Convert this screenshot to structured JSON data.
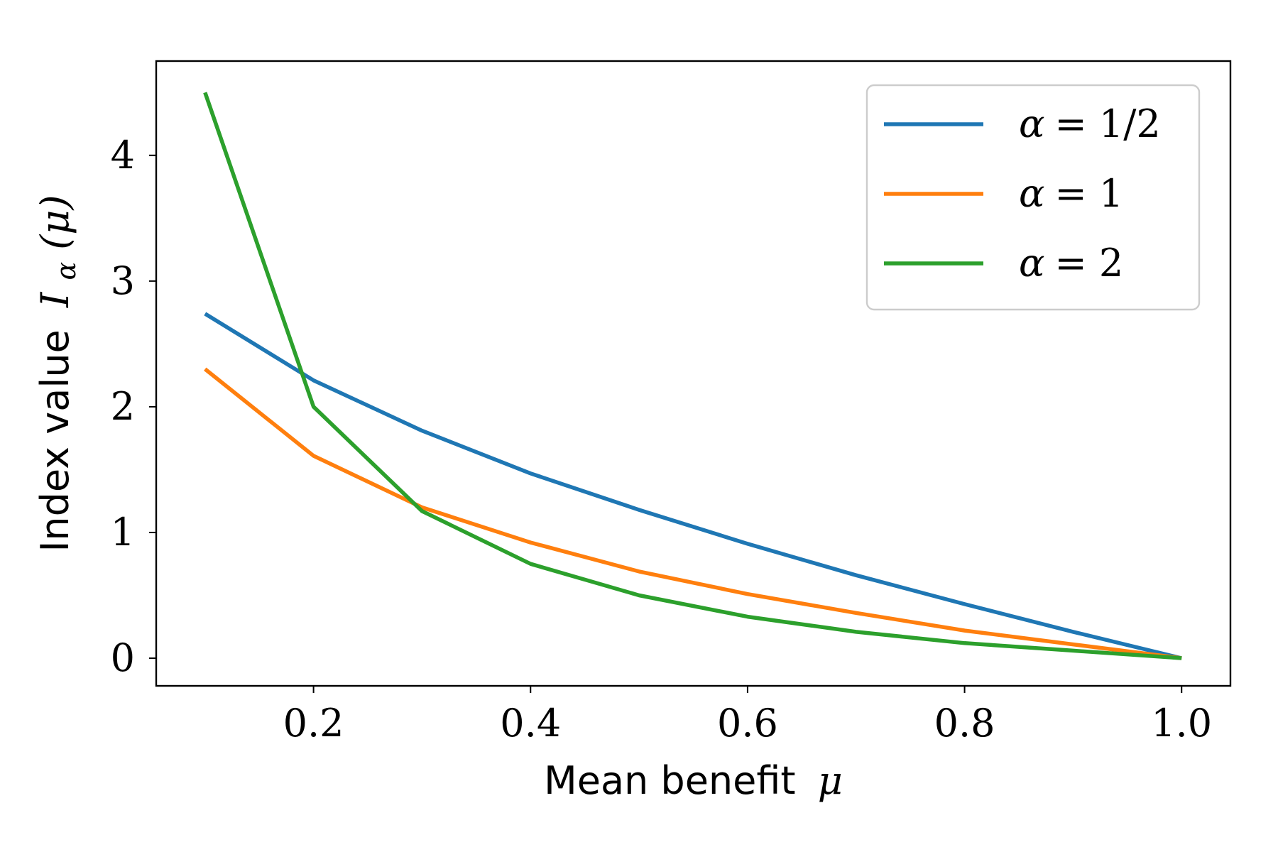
{
  "chart_data": {
    "type": "line",
    "xlabel": {
      "text": "Mean benefit",
      "symbol": "μ"
    },
    "ylabel": {
      "text": "Index value",
      "symbol": "I",
      "subscript": "α",
      "argument": "(μ)"
    },
    "xlim": [
      0.055,
      1.045
    ],
    "ylim": [
      -0.22,
      4.75
    ],
    "xticks": [
      0.2,
      0.4,
      0.6,
      0.8,
      1.0
    ],
    "xtick_labels": [
      "0.2",
      "0.4",
      "0.6",
      "0.8",
      "1.0"
    ],
    "yticks": [
      0,
      1,
      2,
      3,
      4
    ],
    "ytick_labels": [
      "0",
      "1",
      "2",
      "3",
      "4"
    ],
    "grid": false,
    "legend_position": "top-right",
    "x": [
      0.1,
      0.2,
      0.3,
      0.4,
      0.5,
      0.6,
      0.7,
      0.8,
      0.9,
      1.0
    ],
    "series": [
      {
        "name": "α = 1/2",
        "legend": {
          "symbol": "α",
          "rest": "= 1/2"
        },
        "color": "#1f77b4",
        "values": [
          2.74,
          2.21,
          1.81,
          1.47,
          1.18,
          0.91,
          0.66,
          0.43,
          0.21,
          0.0
        ]
      },
      {
        "name": "α = 1",
        "legend": {
          "symbol": "α",
          "rest": "= 1"
        },
        "color": "#ff7f0e",
        "values": [
          2.3,
          1.61,
          1.2,
          0.92,
          0.69,
          0.51,
          0.36,
          0.22,
          0.11,
          0.0
        ]
      },
      {
        "name": "α = 2",
        "legend": {
          "symbol": "α",
          "rest": "= 2"
        },
        "color": "#2ca02c",
        "values": [
          4.5,
          2.0,
          1.17,
          0.75,
          0.5,
          0.33,
          0.21,
          0.12,
          0.06,
          0.0
        ]
      }
    ]
  }
}
